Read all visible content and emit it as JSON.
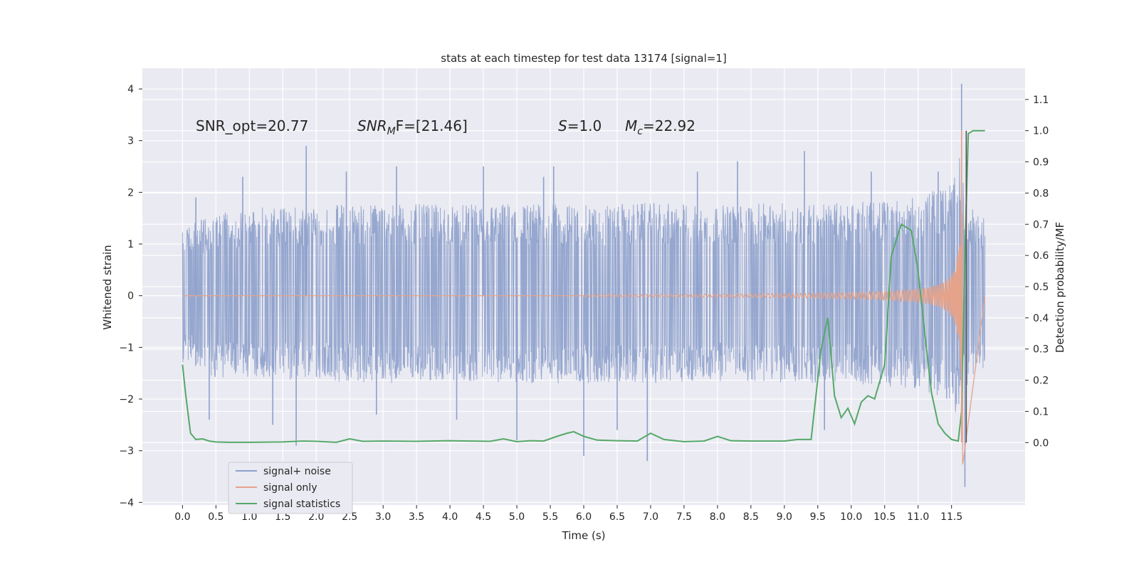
{
  "chart_data": {
    "type": "line",
    "title": "stats at each timestep for test data 13174 [signal=1]",
    "xlabel": "Time (s)",
    "ylabel": "Whitened strain",
    "ylabel_right": "Detection probability/MF",
    "xlim": [
      -0.6,
      12.6
    ],
    "ylim": [
      -4.05,
      4.4
    ],
    "ylim_right": [
      -0.2,
      1.2
    ],
    "x_ticks": [
      "0.0",
      "0.5",
      "1.0",
      "1.5",
      "2.0",
      "2.5",
      "3.0",
      "3.5",
      "4.0",
      "4.5",
      "5.0",
      "5.5",
      "6.0",
      "6.5",
      "7.0",
      "7.5",
      "8.0",
      "8.5",
      "9.0",
      "9.5",
      "10.0",
      "10.5",
      "11.0",
      "11.5"
    ],
    "y_ticks_left": [
      "4",
      "3",
      "2",
      "1",
      "0",
      "−1",
      "−2",
      "−3",
      "−4"
    ],
    "y_ticks_right": [
      "1.1",
      "1.0",
      "0.9",
      "0.8",
      "0.7",
      "0.6",
      "0.5",
      "0.4",
      "0.3",
      "0.2",
      "0.1",
      "0.0"
    ],
    "grid": true,
    "legend_placement": "lower-left",
    "colors": {
      "noise": "#8da0cb",
      "signal": "#e5a38b",
      "stats": "#55a868",
      "background": "#eaeaf2"
    },
    "annotations": {
      "snr_opt": "SNR_opt=20.77",
      "snr_mf_main": "SNR",
      "snr_mf_sub": "M",
      "snr_mf_rest": "F=[21.46]",
      "s_main": "S",
      "s_rest": "=1.0",
      "mc_main": "M",
      "mc_sub": "c",
      "mc_rest": "=22.92"
    },
    "series": [
      {
        "name": "signal+ noise",
        "axis": "left",
        "description_points": "noise band",
        "envelope_x": [
          0,
          0.5,
          1,
          2,
          3,
          4,
          5,
          6,
          7,
          8,
          9,
          10,
          11,
          11.5,
          11.65,
          11.7,
          12.0
        ],
        "envelope_hi": [
          1.3,
          1.6,
          1.7,
          1.75,
          1.8,
          1.75,
          1.8,
          1.75,
          1.8,
          1.75,
          1.8,
          1.8,
          1.9,
          2.2,
          2.8,
          1.8,
          1.5
        ],
        "envelope_lo": [
          -1.3,
          -1.6,
          -1.6,
          -1.65,
          -1.7,
          -1.65,
          -1.7,
          -1.7,
          -1.7,
          -1.65,
          -1.7,
          -1.7,
          -1.8,
          -2.1,
          -2.7,
          -1.8,
          -1.4
        ],
        "spikes_x": [
          0.2,
          0.4,
          0.9,
          1.35,
          1.7,
          1.85,
          2.45,
          2.9,
          3.2,
          4.1,
          4.5,
          5.0,
          5.4,
          5.55,
          6.0,
          6.5,
          6.95,
          7.7,
          8.3,
          9.3,
          9.6,
          10.3,
          11.3,
          11.65,
          11.7
        ],
        "spikes_y": [
          1.9,
          -2.4,
          2.3,
          -2.5,
          -2.9,
          2.9,
          2.4,
          -2.3,
          2.5,
          -2.4,
          2.5,
          -2.8,
          2.3,
          2.5,
          -3.1,
          -2.6,
          -3.2,
          2.4,
          2.6,
          2.8,
          -2.6,
          2.4,
          2.4,
          4.1,
          -3.7
        ]
      },
      {
        "name": "signal only",
        "axis": "left",
        "chirp_start": 6.0,
        "chirp_end": 11.67,
        "chirp_peak": 3.25
      },
      {
        "name": "signal statistics",
        "axis": "right",
        "x": [
          0.0,
          0.05,
          0.12,
          0.2,
          0.3,
          0.4,
          0.5,
          0.7,
          1.0,
          1.5,
          1.8,
          2.0,
          2.3,
          2.5,
          2.7,
          3.0,
          3.5,
          4.0,
          4.3,
          4.6,
          4.8,
          5.0,
          5.2,
          5.4,
          5.6,
          5.75,
          5.85,
          6.0,
          6.2,
          6.5,
          6.8,
          7.0,
          7.2,
          7.5,
          7.8,
          8.0,
          8.2,
          8.5,
          9.0,
          9.2,
          9.4,
          9.55,
          9.65,
          9.75,
          9.85,
          9.95,
          10.05,
          10.15,
          10.25,
          10.35,
          10.5,
          10.6,
          10.75,
          10.9,
          11.0,
          11.1,
          11.2,
          11.3,
          11.4,
          11.5,
          11.6,
          11.65,
          11.7,
          11.75,
          11.82,
          11.9,
          12.0
        ],
        "y": [
          0.25,
          0.15,
          0.03,
          0.01,
          0.012,
          0.005,
          0.002,
          0.001,
          0.001,
          0.002,
          0.005,
          0.004,
          0.001,
          0.012,
          0.004,
          0.005,
          0.004,
          0.006,
          0.005,
          0.004,
          0.012,
          0.003,
          0.006,
          0.005,
          0.02,
          0.03,
          0.035,
          0.02,
          0.008,
          0.006,
          0.005,
          0.03,
          0.01,
          0.003,
          0.005,
          0.02,
          0.006,
          0.005,
          0.005,
          0.01,
          0.01,
          0.3,
          0.4,
          0.15,
          0.08,
          0.11,
          0.06,
          0.13,
          0.15,
          0.14,
          0.25,
          0.6,
          0.7,
          0.68,
          0.55,
          0.35,
          0.16,
          0.06,
          0.03,
          0.01,
          0.005,
          0.1,
          0.6,
          0.99,
          1.0,
          1.0,
          1.0
        ]
      }
    ],
    "vlines": [
      {
        "x": 11.65,
        "color": "#e5a38b"
      },
      {
        "x": 11.72,
        "color": "#555555"
      }
    ]
  }
}
